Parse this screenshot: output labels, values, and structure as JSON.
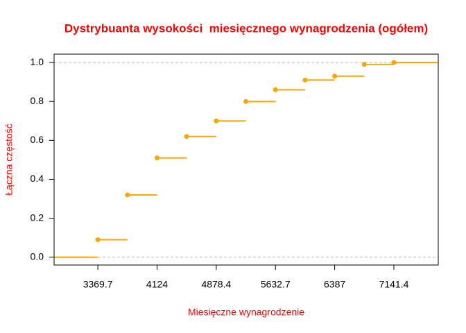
{
  "chart_data": {
    "type": "step",
    "title": "Dystrybuanta wysokości  miesięcznego wynagrodzenia (ogółem)",
    "x_label": "Miesięczne wynagrodzenie",
    "y_label": "Łączna częstość",
    "x": [
      3369.7,
      3746.85,
      4124,
      4501.2,
      4878.4,
      5255.55,
      5632.7,
      6009.85,
      6387,
      6764.2,
      7141.4
    ],
    "values": [
      0.09,
      0.32,
      0.51,
      0.62,
      0.7,
      0.8,
      0.86,
      0.91,
      0.93,
      0.99,
      1.0
    ],
    "color": "#FFA500",
    "xlim": [
      2812,
      7707
    ],
    "ylim": [
      -0.04,
      1.043
    ],
    "xticks": [
      3369.7,
      4124,
      4878.4,
      5632.7,
      6387,
      7141.4
    ],
    "yticks": [
      {
        "value": 0,
        "label": "0.0"
      },
      {
        "value": 0.2,
        "label": "0.2"
      },
      {
        "value": 0.4,
        "label": "0.4"
      },
      {
        "value": 0.6,
        "label": "0.6"
      },
      {
        "value": 0.8,
        "label": "0.8"
      },
      {
        "value": 1,
        "label": "1.0"
      }
    ]
  }
}
